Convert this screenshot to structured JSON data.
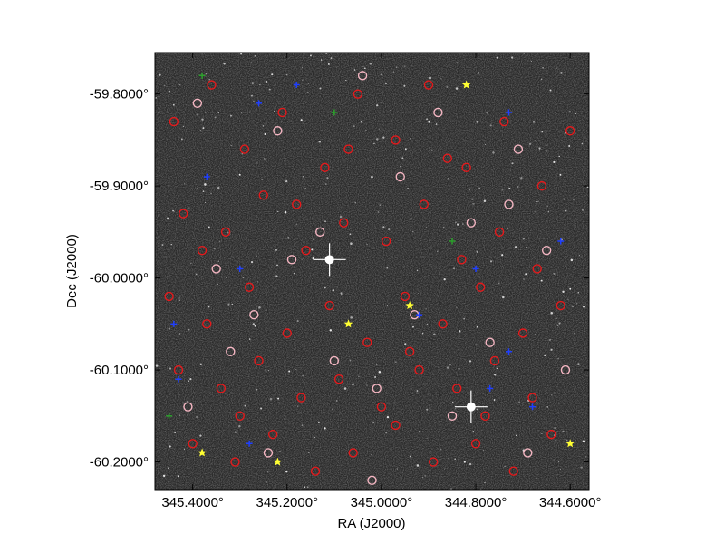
{
  "chart_data": {
    "type": "scatter",
    "title": "",
    "xlabel": "RA (J2000)",
    "ylabel": "Dec (J2000)",
    "xlim": [
      345.48,
      344.56
    ],
    "ylim": [
      -60.23,
      -59.755
    ],
    "x_ticks": [
      {
        "value": 345.4,
        "label": "345.4000°"
      },
      {
        "value": 345.2,
        "label": "345.2000°"
      },
      {
        "value": 345.0,
        "label": "345.0000°"
      },
      {
        "value": 344.8,
        "label": "344.8000°"
      },
      {
        "value": 344.6,
        "label": "344.6000°"
      }
    ],
    "y_ticks": [
      {
        "value": -59.8,
        "label": "-59.8000°"
      },
      {
        "value": -59.9,
        "label": "-59.9000°"
      },
      {
        "value": -60.0,
        "label": "-60.0000°"
      },
      {
        "value": -60.1,
        "label": "-60.1000°"
      },
      {
        "value": -60.2,
        "label": "-60.2000°"
      }
    ],
    "grid": false,
    "background": "grayscale star field image",
    "colors": {
      "red_circle": "#e31a1c",
      "pink_circle": "#f4b6c2",
      "blue_marker": "#1f3fff",
      "green_marker": "#2ca02c",
      "yellow_star": "#ffff33"
    },
    "series": [
      {
        "marker": "open-circle",
        "color": "#e31a1c",
        "points": [
          [
            345.44,
            -59.83
          ],
          [
            345.36,
            -59.79
          ],
          [
            345.29,
            -59.86
          ],
          [
            345.21,
            -59.82
          ],
          [
            345.12,
            -59.88
          ],
          [
            345.05,
            -59.8
          ],
          [
            344.97,
            -59.85
          ],
          [
            344.9,
            -59.79
          ],
          [
            344.82,
            -59.88
          ],
          [
            344.74,
            -59.83
          ],
          [
            344.66,
            -59.9
          ],
          [
            344.6,
            -59.84
          ],
          [
            345.42,
            -59.93
          ],
          [
            345.33,
            -59.95
          ],
          [
            345.25,
            -59.91
          ],
          [
            345.16,
            -59.97
          ],
          [
            345.08,
            -59.94
          ],
          [
            344.99,
            -59.96
          ],
          [
            344.91,
            -59.92
          ],
          [
            344.83,
            -59.98
          ],
          [
            344.75,
            -59.95
          ],
          [
            344.67,
            -59.99
          ],
          [
            345.45,
            -60.02
          ],
          [
            345.37,
            -60.05
          ],
          [
            345.28,
            -60.01
          ],
          [
            345.2,
            -60.06
          ],
          [
            345.11,
            -60.03
          ],
          [
            345.03,
            -60.07
          ],
          [
            344.95,
            -60.02
          ],
          [
            344.87,
            -60.05
          ],
          [
            344.79,
            -60.01
          ],
          [
            344.7,
            -60.06
          ],
          [
            344.62,
            -60.03
          ],
          [
            345.43,
            -60.1
          ],
          [
            345.34,
            -60.12
          ],
          [
            345.26,
            -60.09
          ],
          [
            345.17,
            -60.13
          ],
          [
            345.09,
            -60.11
          ],
          [
            345.0,
            -60.14
          ],
          [
            344.92,
            -60.1
          ],
          [
            344.84,
            -60.12
          ],
          [
            344.76,
            -60.09
          ],
          [
            344.68,
            -60.13
          ],
          [
            345.4,
            -60.18
          ],
          [
            345.31,
            -60.2
          ],
          [
            345.23,
            -60.17
          ],
          [
            345.14,
            -60.21
          ],
          [
            345.06,
            -60.19
          ],
          [
            344.97,
            -60.16
          ],
          [
            344.89,
            -60.2
          ],
          [
            344.8,
            -60.18
          ],
          [
            344.72,
            -60.21
          ],
          [
            344.64,
            -60.17
          ],
          [
            345.18,
            -59.92
          ],
          [
            344.86,
            -59.87
          ],
          [
            345.3,
            -60.15
          ],
          [
            344.94,
            -60.08
          ],
          [
            345.07,
            -59.86
          ],
          [
            344.78,
            -60.15
          ],
          [
            345.38,
            -59.97
          ]
        ]
      },
      {
        "marker": "open-circle",
        "color": "#f4b6c2",
        "points": [
          [
            345.39,
            -59.81
          ],
          [
            345.22,
            -59.84
          ],
          [
            345.04,
            -59.78
          ],
          [
            344.88,
            -59.82
          ],
          [
            344.71,
            -59.86
          ],
          [
            345.35,
            -59.99
          ],
          [
            345.13,
            -59.95
          ],
          [
            344.96,
            -59.89
          ],
          [
            344.81,
            -59.94
          ],
          [
            344.65,
            -59.97
          ],
          [
            345.27,
            -60.04
          ],
          [
            345.1,
            -60.09
          ],
          [
            344.93,
            -60.04
          ],
          [
            344.77,
            -60.07
          ],
          [
            344.61,
            -60.1
          ],
          [
            345.41,
            -60.14
          ],
          [
            345.24,
            -60.19
          ],
          [
            345.02,
            -60.22
          ],
          [
            344.85,
            -60.15
          ],
          [
            344.69,
            -60.19
          ],
          [
            345.19,
            -59.98
          ],
          [
            345.01,
            -60.12
          ],
          [
            344.73,
            -59.92
          ],
          [
            345.32,
            -60.08
          ]
        ]
      },
      {
        "marker": "blue-cross",
        "color": "#1f3fff",
        "points": [
          [
            345.26,
            -59.81
          ],
          [
            345.18,
            -59.79
          ],
          [
            344.73,
            -59.82
          ],
          [
            345.37,
            -59.89
          ],
          [
            344.62,
            -59.96
          ],
          [
            345.3,
            -59.99
          ],
          [
            344.8,
            -59.99
          ],
          [
            345.44,
            -60.05
          ],
          [
            344.92,
            -60.04
          ],
          [
            344.73,
            -60.08
          ],
          [
            345.43,
            -60.11
          ],
          [
            344.77,
            -60.12
          ],
          [
            345.28,
            -60.18
          ],
          [
            344.68,
            -60.14
          ]
        ]
      },
      {
        "marker": "green-cross",
        "color": "#2ca02c",
        "points": [
          [
            345.38,
            -59.78
          ],
          [
            345.1,
            -59.82
          ],
          [
            344.85,
            -59.96
          ],
          [
            345.45,
            -60.15
          ]
        ]
      },
      {
        "marker": "star",
        "color": "#ffff33",
        "points": [
          [
            344.82,
            -59.79
          ],
          [
            345.07,
            -60.05
          ],
          [
            344.94,
            -60.03
          ],
          [
            345.38,
            -60.19
          ],
          [
            345.22,
            -60.2
          ],
          [
            344.6,
            -60.18
          ]
        ]
      }
    ],
    "bright_stars": [
      [
        344.81,
        -60.14
      ],
      [
        345.11,
        -59.98
      ]
    ]
  }
}
